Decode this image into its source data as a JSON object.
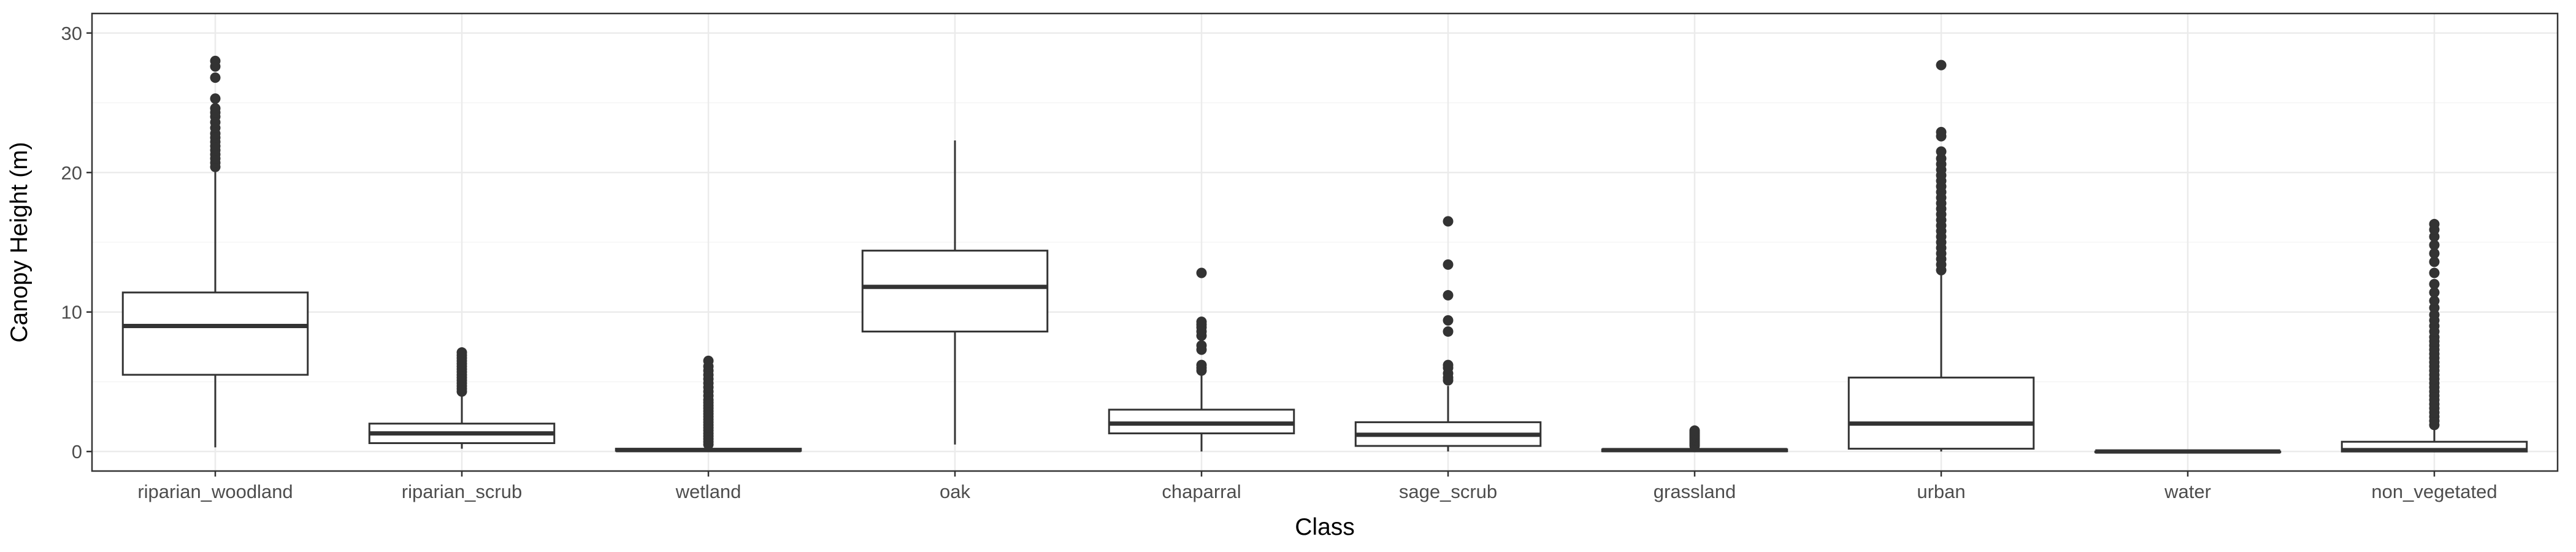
{
  "chart_data": {
    "type": "box",
    "title": "",
    "xlabel": "Class",
    "ylabel": "Canopy Height (m)",
    "ylim": [
      -1.4,
      31.4
    ],
    "yticks": [
      0,
      10,
      20,
      30
    ],
    "grid": true,
    "legend": "none",
    "categories": [
      "riparian_woodland",
      "riparian_scrub",
      "wetland",
      "oak",
      "chaparral",
      "sage_scrub",
      "grassland",
      "urban",
      "water",
      "non_vegetated"
    ],
    "boxes": [
      {
        "category": "riparian_woodland",
        "whisker_low": 0.3,
        "q1": 5.5,
        "median": 9.0,
        "q3": 11.4,
        "whisker_high": 20.2,
        "outliers": [
          20.4,
          20.7,
          21.0,
          21.3,
          21.6,
          21.9,
          22.2,
          22.5,
          22.8,
          23.2,
          23.6,
          24.0,
          24.3,
          24.6,
          25.3,
          26.8,
          27.6,
          28.0
        ]
      },
      {
        "category": "riparian_scrub",
        "whisker_low": 0.2,
        "q1": 0.6,
        "median": 1.3,
        "q3": 2.0,
        "whisker_high": 4.1,
        "outliers": [
          4.3,
          4.5,
          4.7,
          4.9,
          5.1,
          5.3,
          5.5,
          5.7,
          5.9,
          6.1,
          6.3,
          6.5,
          6.7,
          6.9,
          7.1
        ]
      },
      {
        "category": "wetland",
        "whisker_low": 0.0,
        "q1": 0.05,
        "median": 0.1,
        "q3": 0.2,
        "whisker_high": 0.4,
        "outliers": [
          0.5,
          0.7,
          0.9,
          1.1,
          1.3,
          1.5,
          1.7,
          1.9,
          2.1,
          2.3,
          2.5,
          2.7,
          2.9,
          3.1,
          3.3,
          3.5,
          3.7,
          4.0,
          4.3,
          4.6,
          4.9,
          5.2,
          5.5,
          5.8,
          6.1,
          6.5
        ]
      },
      {
        "category": "oak",
        "whisker_low": 0.5,
        "q1": 8.6,
        "median": 11.8,
        "q3": 14.4,
        "whisker_high": 22.3,
        "outliers": []
      },
      {
        "category": "chaparral",
        "whisker_low": 0.0,
        "q1": 1.3,
        "median": 2.0,
        "q3": 3.0,
        "whisker_high": 5.5,
        "outliers": [
          5.8,
          6.0,
          6.2,
          7.3,
          7.6,
          8.3,
          8.6,
          8.9,
          9.1,
          9.3,
          12.8
        ]
      },
      {
        "category": "sage_scrub",
        "whisker_low": 0.0,
        "q1": 0.4,
        "median": 1.2,
        "q3": 2.1,
        "whisker_high": 4.7,
        "outliers": [
          5.1,
          5.3,
          5.6,
          6.0,
          6.2,
          8.6,
          9.4,
          11.2,
          13.4,
          16.5
        ]
      },
      {
        "category": "grassland",
        "whisker_low": 0.0,
        "q1": 0.02,
        "median": 0.1,
        "q3": 0.15,
        "whisker_high": 0.3,
        "outliers": [
          0.4,
          0.5,
          0.6,
          0.7,
          0.8,
          0.9,
          1.0,
          1.1,
          1.2,
          1.3,
          1.4,
          1.5
        ]
      },
      {
        "category": "urban",
        "whisker_low": 0.0,
        "q1": 0.2,
        "median": 2.0,
        "q3": 5.3,
        "whisker_high": 12.8,
        "outliers": [
          13.0,
          13.4,
          13.8,
          14.2,
          14.6,
          15.0,
          15.4,
          15.8,
          16.2,
          16.6,
          17.0,
          17.4,
          17.8,
          18.2,
          18.6,
          19.0,
          19.4,
          19.8,
          20.2,
          20.6,
          21.0,
          21.5,
          22.6,
          22.9,
          27.7
        ]
      },
      {
        "category": "water",
        "whisker_low": -0.1,
        "q1": -0.05,
        "median": 0.0,
        "q3": 0.0,
        "whisker_high": 0.0,
        "outliers": []
      },
      {
        "category": "non_vegetated",
        "whisker_low": 0.0,
        "q1": 0.0,
        "median": 0.1,
        "q3": 0.7,
        "whisker_high": 1.7,
        "outliers": [
          1.9,
          2.2,
          2.5,
          2.8,
          3.1,
          3.4,
          3.7,
          4.0,
          4.3,
          4.6,
          4.9,
          5.2,
          5.5,
          5.8,
          6.1,
          6.4,
          6.7,
          7.0,
          7.3,
          7.6,
          7.9,
          8.2,
          8.6,
          9.0,
          9.4,
          9.8,
          10.3,
          10.8,
          11.4,
          12.0,
          12.8,
          13.6,
          14.2,
          14.8,
          15.4,
          15.9,
          16.3
        ]
      }
    ],
    "colors": {
      "panel_background": "#ffffff",
      "panel_border": "#333333",
      "grid_major": "#ebebeb",
      "grid_minor": "#f5f5f5",
      "box_stroke": "#333333",
      "box_fill": "#ffffff",
      "outlier": "#333333"
    }
  }
}
